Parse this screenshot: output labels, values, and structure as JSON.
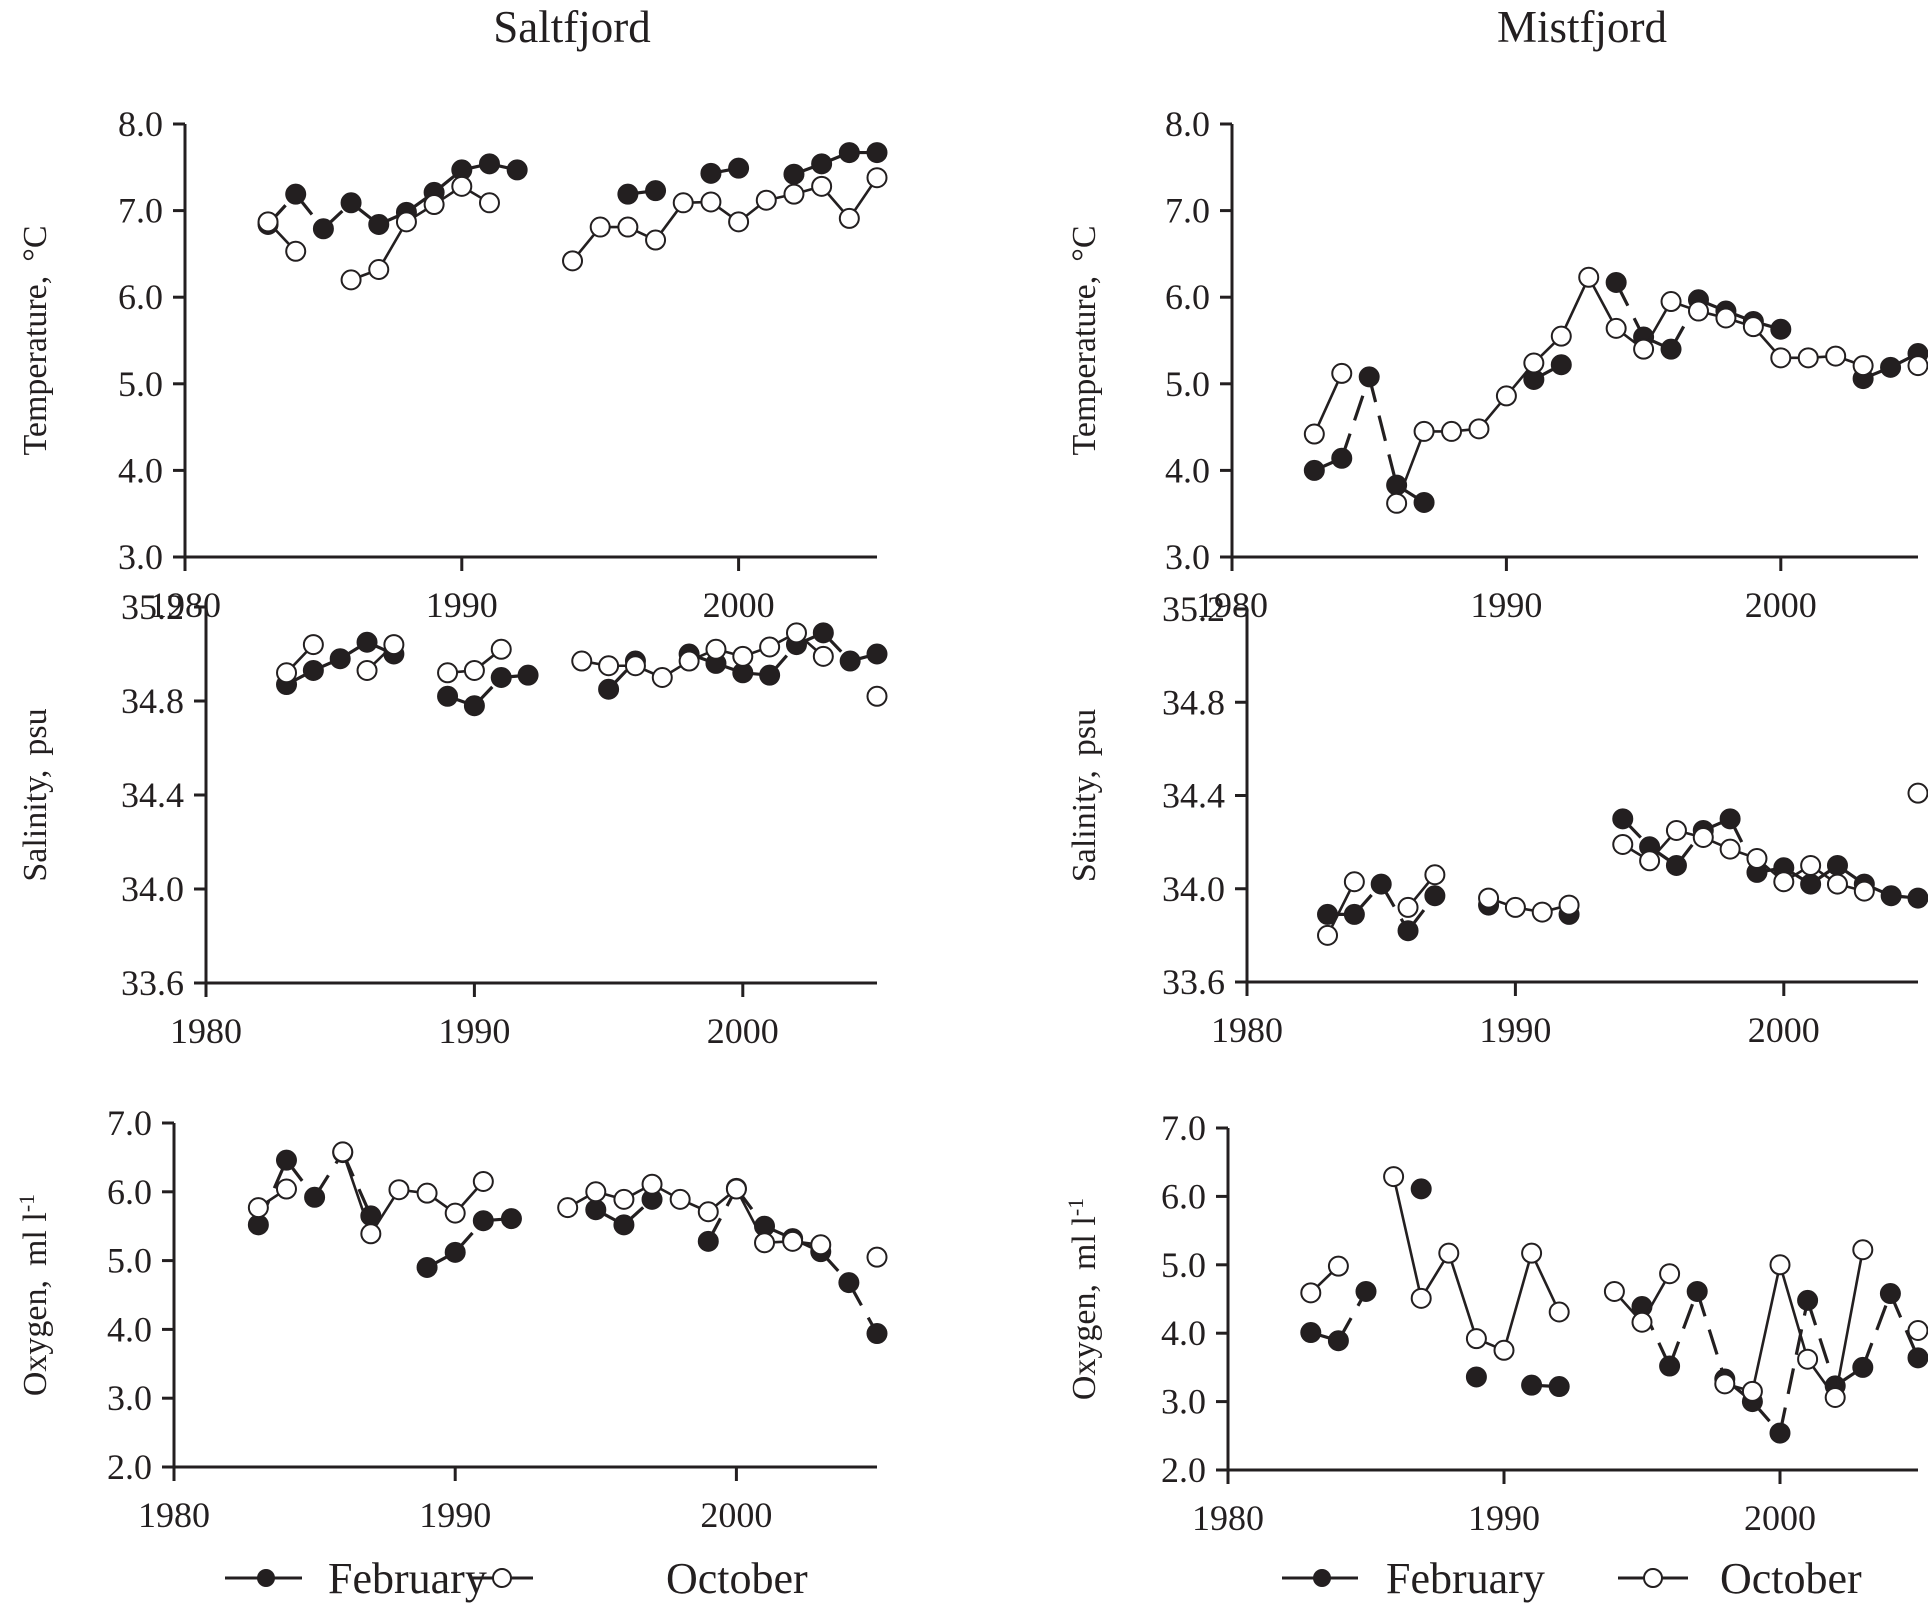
{
  "figure": {
    "legend": [
      {
        "name": "February",
        "marker": "filled-circle",
        "line": "dashed"
      },
      {
        "name": "October",
        "marker": "open-circle",
        "line": "solid"
      }
    ]
  },
  "chart_data": [
    {
      "type": "line",
      "title": "Saltfjord",
      "panel": "temperature",
      "xlabel": "",
      "ylabel": "Temperature, °C",
      "ylabel_main": "Temperature,",
      "ylabel_unit": "°C",
      "xlim": [
        1980,
        2005
      ],
      "ylim": [
        3.0,
        8.0
      ],
      "xticks": [
        1980,
        1990,
        2000
      ],
      "yticks": [
        "3.0",
        "4.0",
        "5.0",
        "6.0",
        "7.0",
        "8.0"
      ],
      "grid": false,
      "series": [
        {
          "name": "February",
          "points": [
            [
              1983,
              6.84
            ],
            [
              1984,
              7.19
            ],
            [
              1985,
              6.79
            ],
            [
              1986,
              7.09
            ],
            [
              1987,
              6.84
            ],
            [
              1988,
              6.98
            ],
            [
              1989,
              7.21
            ],
            [
              1990,
              7.47
            ],
            [
              1991,
              7.54
            ],
            [
              1992,
              7.47
            ],
            [
              1996,
              7.19
            ],
            [
              1997,
              7.23
            ],
            [
              1999,
              7.43
            ],
            [
              2000,
              7.49
            ],
            [
              2002,
              7.42
            ],
            [
              2003,
              7.54
            ],
            [
              2004,
              7.67
            ],
            [
              2005,
              7.67
            ]
          ]
        },
        {
          "name": "October",
          "points": [
            [
              1983,
              6.87
            ],
            [
              1984,
              6.53
            ],
            [
              1986,
              6.2
            ],
            [
              1987,
              6.32
            ],
            [
              1988,
              6.87
            ],
            [
              1989,
              7.07
            ],
            [
              1990,
              7.28
            ],
            [
              1991,
              7.09
            ],
            [
              1994,
              6.42
            ],
            [
              1995,
              6.81
            ],
            [
              1996,
              6.81
            ],
            [
              1997,
              6.66
            ],
            [
              1998,
              7.09
            ],
            [
              1999,
              7.1
            ],
            [
              2000,
              6.87
            ],
            [
              2001,
              7.12
            ],
            [
              2002,
              7.19
            ],
            [
              2003,
              7.28
            ],
            [
              2004,
              6.91
            ],
            [
              2005,
              7.38
            ]
          ]
        }
      ]
    },
    {
      "type": "line",
      "title": "Mistfjord",
      "panel": "temperature",
      "xlabel": "",
      "ylabel": "Temperature, °C",
      "ylabel_main": "Temperature,",
      "ylabel_unit": "°C",
      "xlim": [
        1980,
        2005
      ],
      "ylim": [
        3.0,
        8.0
      ],
      "xticks": [
        1980,
        1990,
        2000
      ],
      "yticks": [
        "3.0",
        "4.0",
        "5.0",
        "6.0",
        "7.0",
        "8.0"
      ],
      "grid": false,
      "series": [
        {
          "name": "February",
          "points": [
            [
              1983,
              4.0
            ],
            [
              1984,
              4.14
            ],
            [
              1985,
              5.08
            ],
            [
              1986,
              3.83
            ],
            [
              1987,
              3.63
            ],
            [
              1991,
              5.05
            ],
            [
              1992,
              5.22
            ],
            [
              1994,
              6.17
            ],
            [
              1995,
              5.54
            ],
            [
              1996,
              5.4
            ],
            [
              1997,
              5.97
            ],
            [
              1998,
              5.84
            ],
            [
              1999,
              5.72
            ],
            [
              2000,
              5.63
            ],
            [
              2003,
              5.06
            ],
            [
              2004,
              5.19
            ],
            [
              2005,
              5.35
            ]
          ]
        },
        {
          "name": "October",
          "points": [
            [
              1983,
              4.42
            ],
            [
              1984,
              5.12
            ],
            [
              1986,
              3.62
            ],
            [
              1987,
              4.45
            ],
            [
              1988,
              4.45
            ],
            [
              1989,
              4.48
            ],
            [
              1990,
              4.86
            ],
            [
              1991,
              5.24
            ],
            [
              1992,
              5.55
            ],
            [
              1993,
              6.23
            ],
            [
              1994,
              5.64
            ],
            [
              1995,
              5.4
            ],
            [
              1996,
              5.95
            ],
            [
              1997,
              5.84
            ],
            [
              1998,
              5.76
            ],
            [
              1999,
              5.66
            ],
            [
              2000,
              5.3
            ],
            [
              2001,
              5.3
            ],
            [
              2002,
              5.32
            ],
            [
              2003,
              5.21
            ],
            [
              2005,
              5.21
            ]
          ]
        }
      ]
    },
    {
      "type": "line",
      "title": "Saltfjord",
      "panel": "salinity",
      "xlabel": "",
      "ylabel": "Salinity, psu",
      "ylabel_main": "Salinity,",
      "ylabel_unit": "psu",
      "xlim": [
        1980,
        2005
      ],
      "ylim": [
        33.6,
        35.2
      ],
      "xticks": [
        1980,
        1990,
        2000
      ],
      "yticks": [
        "33.6",
        "34.0",
        "34.4",
        "34.8",
        "35.2"
      ],
      "grid": false,
      "series": [
        {
          "name": "February",
          "points": [
            [
              1983,
              34.87
            ],
            [
              1984,
              34.93
            ],
            [
              1985,
              34.98
            ],
            [
              1986,
              35.05
            ],
            [
              1987,
              35.0
            ],
            [
              1989,
              34.82
            ],
            [
              1990,
              34.78
            ],
            [
              1991,
              34.9
            ],
            [
              1992,
              34.91
            ],
            [
              1995,
              34.85
            ],
            [
              1996,
              34.97
            ],
            [
              1998,
              35.0
            ],
            [
              1999,
              34.96
            ],
            [
              2000,
              34.92
            ],
            [
              2001,
              34.91
            ],
            [
              2002,
              35.04
            ],
            [
              2003,
              35.09
            ],
            [
              2004,
              34.97
            ],
            [
              2005,
              35.0
            ]
          ]
        },
        {
          "name": "October",
          "points": [
            [
              1983,
              34.92
            ],
            [
              1984,
              35.04
            ],
            [
              1986,
              34.93
            ],
            [
              1987,
              35.04
            ],
            [
              1989,
              34.92
            ],
            [
              1990,
              34.93
            ],
            [
              1991,
              35.02
            ],
            [
              1994,
              34.97
            ],
            [
              1995,
              34.95
            ],
            [
              1996,
              34.95
            ],
            [
              1997,
              34.9
            ],
            [
              1998,
              34.97
            ],
            [
              1999,
              35.02
            ],
            [
              2000,
              34.99
            ],
            [
              2001,
              35.03
            ],
            [
              2002,
              35.09
            ],
            [
              2003,
              34.99
            ],
            [
              2005,
              34.82
            ]
          ]
        }
      ]
    },
    {
      "type": "line",
      "title": "Mistfjord",
      "panel": "salinity",
      "xlabel": "",
      "ylabel": "Salinity, psu",
      "ylabel_main": "Salinity,",
      "ylabel_unit": "psu",
      "xlim": [
        1980,
        2005
      ],
      "ylim": [
        33.6,
        35.2
      ],
      "xticks": [
        1980,
        1990,
        2000
      ],
      "yticks": [
        "33.6",
        "34.0",
        "34.4",
        "34.8",
        "35.2"
      ],
      "grid": false,
      "series": [
        {
          "name": "February",
          "points": [
            [
              1983,
              33.89
            ],
            [
              1984,
              33.89
            ],
            [
              1985,
              34.02
            ],
            [
              1986,
              33.82
            ],
            [
              1987,
              33.97
            ],
            [
              1989,
              33.93
            ],
            [
              1992,
              33.89
            ],
            [
              1994,
              34.3
            ],
            [
              1995,
              34.18
            ],
            [
              1996,
              34.1
            ],
            [
              1997,
              34.25
            ],
            [
              1998,
              34.3
            ],
            [
              1999,
              34.07
            ],
            [
              2000,
              34.09
            ],
            [
              2001,
              34.02
            ],
            [
              2002,
              34.1
            ],
            [
              2003,
              34.02
            ],
            [
              2004,
              33.97
            ],
            [
              2005,
              33.96
            ]
          ]
        },
        {
          "name": "October",
          "points": [
            [
              1983,
              33.8
            ],
            [
              1984,
              34.03
            ],
            [
              1986,
              33.92
            ],
            [
              1987,
              34.06
            ],
            [
              1989,
              33.96
            ],
            [
              1990,
              33.92
            ],
            [
              1991,
              33.9
            ],
            [
              1992,
              33.93
            ],
            [
              1994,
              34.19
            ],
            [
              1995,
              34.12
            ],
            [
              1996,
              34.25
            ],
            [
              1997,
              34.22
            ],
            [
              1998,
              34.17
            ],
            [
              1999,
              34.13
            ],
            [
              2000,
              34.03
            ],
            [
              2001,
              34.1
            ],
            [
              2002,
              34.02
            ],
            [
              2003,
              33.99
            ],
            [
              2005,
              34.41
            ]
          ]
        }
      ]
    },
    {
      "type": "line",
      "title": "Saltfjord",
      "panel": "oxygen",
      "xlabel": "",
      "ylabel": "Oxygen, ml l-1",
      "ylabel_main": "Oxygen,",
      "ylabel_unit": "ml l",
      "ylabel_sup": "-1",
      "xlim": [
        1980,
        2005
      ],
      "ylim": [
        2.0,
        7.0
      ],
      "xticks": [
        1980,
        1990,
        2000
      ],
      "yticks": [
        "2.0",
        "3.0",
        "4.0",
        "5.0",
        "6.0",
        "7.0"
      ],
      "grid": false,
      "series": [
        {
          "name": "February",
          "points": [
            [
              1983,
              5.52
            ],
            [
              1984,
              6.46
            ],
            [
              1985,
              5.92
            ],
            [
              1986,
              6.57
            ],
            [
              1987,
              5.65
            ],
            [
              1989,
              4.9
            ],
            [
              1990,
              5.12
            ],
            [
              1991,
              5.58
            ],
            [
              1992,
              5.61
            ],
            [
              1995,
              5.74
            ],
            [
              1996,
              5.52
            ],
            [
              1997,
              5.89
            ],
            [
              1999,
              5.28
            ],
            [
              2000,
              6.05
            ],
            [
              2001,
              5.5
            ],
            [
              2002,
              5.32
            ],
            [
              2003,
              5.13
            ],
            [
              2004,
              4.68
            ],
            [
              2005,
              3.94
            ]
          ]
        },
        {
          "name": "October",
          "points": [
            [
              1983,
              5.77
            ],
            [
              1984,
              6.04
            ],
            [
              1986,
              6.58
            ],
            [
              1987,
              5.39
            ],
            [
              1988,
              6.03
            ],
            [
              1989,
              5.98
            ],
            [
              1990,
              5.69
            ],
            [
              1991,
              6.15
            ],
            [
              1994,
              5.77
            ],
            [
              1995,
              6.0
            ],
            [
              1996,
              5.89
            ],
            [
              1997,
              6.11
            ],
            [
              1998,
              5.89
            ],
            [
              1999,
              5.71
            ],
            [
              2000,
              6.04
            ],
            [
              2001,
              5.26
            ],
            [
              2002,
              5.28
            ],
            [
              2003,
              5.23
            ],
            [
              2005,
              5.05
            ]
          ]
        }
      ]
    },
    {
      "type": "line",
      "title": "Mistfjord",
      "panel": "oxygen",
      "xlabel": "",
      "ylabel": "Oxygen, ml l-1",
      "ylabel_main": "Oxygen,",
      "ylabel_unit": "ml l",
      "ylabel_sup": "-1",
      "xlim": [
        1980,
        2005
      ],
      "ylim": [
        2.0,
        7.0
      ],
      "xticks": [
        1980,
        1990,
        2000
      ],
      "yticks": [
        "2.0",
        "3.0",
        "4.0",
        "5.0",
        "6.0",
        "7.0"
      ],
      "grid": false,
      "series": [
        {
          "name": "February",
          "points": [
            [
              1983,
              4.01
            ],
            [
              1984,
              3.89
            ],
            [
              1985,
              4.61
            ],
            [
              1987,
              6.11
            ],
            [
              1989,
              3.36
            ],
            [
              1991,
              3.24
            ],
            [
              1992,
              3.22
            ],
            [
              1995,
              4.39
            ],
            [
              1996,
              3.52
            ],
            [
              1997,
              4.61
            ],
            [
              1998,
              3.33
            ],
            [
              1999,
              3.0
            ],
            [
              2000,
              2.54
            ],
            [
              2001,
              4.48
            ],
            [
              2002,
              3.23
            ],
            [
              2003,
              3.5
            ],
            [
              2004,
              4.58
            ],
            [
              2005,
              3.64
            ]
          ]
        },
        {
          "name": "October",
          "points": [
            [
              1983,
              4.59
            ],
            [
              1984,
              4.98
            ],
            [
              1986,
              6.29
            ],
            [
              1987,
              4.51
            ],
            [
              1988,
              5.17
            ],
            [
              1989,
              3.92
            ],
            [
              1990,
              3.75
            ],
            [
              1991,
              5.17
            ],
            [
              1992,
              4.31
            ],
            [
              1994,
              4.61
            ],
            [
              1995,
              4.16
            ],
            [
              1996,
              4.87
            ],
            [
              1998,
              3.26
            ],
            [
              1999,
              3.15
            ],
            [
              2000,
              5.0
            ],
            [
              2001,
              3.62
            ],
            [
              2002,
              3.06
            ],
            [
              2003,
              5.22
            ],
            [
              2005,
              4.04
            ]
          ]
        }
      ]
    }
  ]
}
